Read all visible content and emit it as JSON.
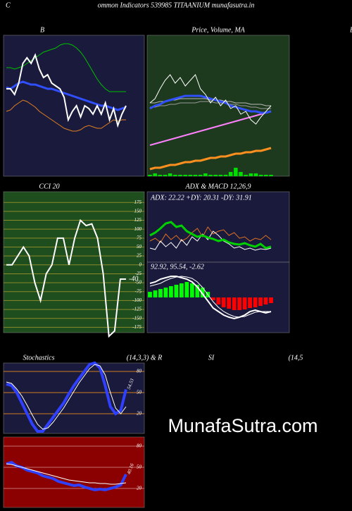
{
  "header": {
    "left": "C",
    "title": "ommon  Indicators 539985 TITAANIUM munafasutra.in",
    "right": "B"
  },
  "watermark": "MunafaSutra.com",
  "chart_data": [
    {
      "type": "line",
      "title": "B",
      "background": "#1a1a3c",
      "ylim": [
        0,
        100
      ],
      "series": [
        {
          "color": "#00c000",
          "width": 1,
          "values": [
            77,
            77,
            76,
            77,
            78,
            80,
            82,
            84,
            86,
            88,
            89,
            90,
            91,
            93,
            94,
            94,
            93,
            91,
            88,
            84,
            79,
            74,
            69,
            65,
            62,
            60,
            60,
            60,
            60,
            60
          ]
        },
        {
          "color": "#3050ff",
          "width": 3,
          "values": [
            63,
            62,
            64,
            66,
            67,
            66,
            65,
            65,
            64,
            63,
            62,
            62,
            61,
            60,
            59,
            58,
            57,
            56,
            55,
            54,
            53,
            52,
            51,
            50,
            50,
            49,
            48,
            47,
            48,
            49
          ]
        },
        {
          "color": "#e08020",
          "width": 1,
          "values": [
            46,
            47,
            50,
            52,
            54,
            53,
            51,
            49,
            46,
            44,
            42,
            40,
            38,
            36,
            34,
            33,
            32,
            32,
            33,
            35,
            36,
            35,
            34,
            34,
            36,
            38,
            40,
            39,
            40,
            40
          ]
        },
        {
          "color": "#ffffff",
          "width": 2,
          "values": [
            62,
            62,
            58,
            66,
            80,
            84,
            80,
            86,
            76,
            70,
            72,
            66,
            64,
            62,
            56,
            40,
            46,
            50,
            42,
            50,
            48,
            44,
            50,
            44,
            52,
            40,
            48,
            36,
            44,
            50
          ]
        }
      ]
    },
    {
      "type": "line",
      "title": "Price, Volume, MA",
      "background": "#1e3a1e",
      "ylim": [
        0,
        100
      ],
      "series": [
        {
          "color": "#00e000",
          "style": "bar",
          "values": [
            1,
            2,
            1,
            1,
            2,
            1,
            1,
            1,
            1,
            1,
            1,
            2,
            1,
            1,
            1,
            1,
            3,
            6,
            3,
            1,
            2,
            2,
            1,
            1,
            1
          ]
        },
        {
          "color": "#ff9020",
          "width": 3,
          "values": [
            5,
            6,
            6,
            7,
            8,
            8,
            9,
            10,
            10,
            11,
            11,
            12,
            13,
            13,
            14,
            14,
            15,
            16,
            16,
            17,
            17,
            18,
            18,
            19,
            20
          ]
        },
        {
          "color": "#ff80ff",
          "width": 2,
          "values": [
            22,
            23,
            24,
            25,
            26,
            27,
            28,
            29,
            30,
            31,
            32,
            33,
            34,
            35,
            36,
            37,
            38,
            39,
            40,
            41,
            42,
            43,
            44,
            45,
            46
          ]
        },
        {
          "color": "#bbbbbb",
          "width": 1,
          "values": [
            52,
            52,
            53,
            53,
            54,
            54,
            55,
            55,
            55,
            55,
            55,
            55,
            54,
            54,
            54,
            53,
            53,
            52,
            52,
            52,
            51,
            51,
            51,
            50,
            50
          ]
        },
        {
          "color": "#999999",
          "width": 1,
          "values": [
            49,
            49,
            50,
            50,
            51,
            51,
            52,
            52,
            52,
            52,
            53,
            53,
            53,
            52,
            52,
            52,
            51,
            51,
            50,
            50,
            49,
            49,
            48,
            48,
            48
          ]
        },
        {
          "color": "#3050ff",
          "width": 3,
          "values": [
            48,
            50,
            51,
            53,
            54,
            55,
            56,
            57,
            57,
            57,
            57,
            56,
            55,
            54,
            53,
            52,
            50,
            49,
            48,
            47,
            46,
            46,
            45,
            45,
            46
          ]
        },
        {
          "color": "#ffffff",
          "width": 1,
          "values": [
            52,
            55,
            62,
            68,
            72,
            66,
            70,
            64,
            68,
            72,
            62,
            58,
            52,
            56,
            50,
            54,
            48,
            50,
            44,
            46,
            40,
            37,
            42,
            46,
            50
          ]
        }
      ]
    },
    {
      "type": "line",
      "title": "CCI 20",
      "background": "#1e4d1e",
      "grid_color": "#8a8a2a",
      "ylim": [
        -190,
        205
      ],
      "yticks": [
        175,
        150,
        125,
        100,
        75,
        50,
        25,
        0,
        -25,
        -50,
        -75,
        -100,
        -125,
        -150,
        -175
      ],
      "last_label": true,
      "series": [
        {
          "color": "#ffffff",
          "width": 2,
          "values": [
            0,
            0,
            25,
            50,
            25,
            -50,
            -100,
            -25,
            0,
            75,
            75,
            0,
            75,
            125,
            110,
            115,
            75,
            -25,
            -200,
            -185,
            -40,
            -40
          ]
        }
      ]
    },
    {
      "type": "line",
      "title": "ADX  & MACD 12,26,9",
      "annotation": "ADX: 22.22  +DY: 20.31 -DY: 31.91",
      "background": "#1a1a3c",
      "ylim": [
        0,
        100
      ],
      "series": [
        {
          "color": "#e07020",
          "width": 1,
          "values": [
            30,
            34,
            28,
            40,
            32,
            38,
            30,
            34,
            42,
            48,
            36,
            50,
            40,
            44,
            46,
            38,
            42,
            34,
            36,
            30,
            34,
            32,
            38,
            32
          ]
        },
        {
          "color": "#ffffff",
          "width": 1,
          "values": [
            20,
            18,
            30,
            22,
            28,
            20,
            32,
            24,
            36,
            30,
            40,
            32,
            44,
            38,
            30,
            26,
            20,
            22,
            18,
            20,
            17,
            19,
            18,
            20
          ]
        },
        {
          "color": "#00d000",
          "width": 3,
          "values": [
            38,
            42,
            48,
            55,
            57,
            50,
            52,
            44,
            40,
            36,
            38,
            35,
            33,
            30,
            32,
            28,
            26,
            25,
            27,
            24,
            22,
            26,
            20,
            22
          ]
        }
      ]
    },
    {
      "type": "line",
      "annotation": "92.92,  95.54,  -2.62",
      "background": "#1a1a3c",
      "ylim": [
        -50,
        50
      ],
      "series": [
        {
          "color": "#00ff00",
          "negative_color": "#ff0000",
          "style": "bar",
          "values": [
            8,
            10,
            12,
            14,
            16,
            18,
            20,
            22,
            20,
            18,
            14,
            8,
            -4,
            -10,
            -14,
            -16,
            -18,
            -18,
            -17,
            -15,
            -14,
            -12,
            -10,
            -8
          ]
        },
        {
          "color": "#ffffff",
          "width": 1,
          "values": [
            16,
            18,
            20,
            24,
            27,
            29,
            30,
            29,
            27,
            22,
            14,
            4,
            -6,
            -14,
            -20,
            -24,
            -27,
            -28,
            -27,
            -24,
            -21,
            -20,
            -20,
            -20
          ]
        },
        {
          "color": "#ffffff",
          "width": 2,
          "values": [
            20,
            22,
            26,
            28,
            30,
            30,
            28,
            26,
            22,
            15,
            5,
            -5,
            -15,
            -20,
            -25,
            -28,
            -30,
            -28,
            -25,
            -20,
            -18,
            -20,
            -22,
            -20
          ]
        }
      ]
    },
    {
      "type": "line",
      "title": "Stochastics",
      "subtitle": "(14,3,3) & R",
      "background": "#1a1a3c",
      "grid_color": "#d08020",
      "ylim": [
        -8,
        92
      ],
      "yticks": [
        80,
        50,
        20
      ],
      "last_label": true,
      "series": [
        {
          "color": "#3040ff",
          "width": 4,
          "values": [
            62,
            60,
            50,
            35,
            20,
            5,
            -5,
            -5,
            5,
            15,
            25,
            35,
            48,
            60,
            70,
            80,
            90,
            92,
            85,
            60,
            30,
            20,
            25,
            54.53
          ]
        },
        {
          "color": "#ffffff",
          "width": 1,
          "values": [
            65,
            63,
            55,
            45,
            32,
            18,
            5,
            -2,
            0,
            8,
            18,
            28,
            40,
            52,
            64,
            74,
            84,
            90,
            88,
            75,
            50,
            28,
            20,
            30
          ]
        }
      ]
    },
    {
      "type": "line",
      "title": "SI",
      "subtitle": "(14,5",
      "background": "#8b0000",
      "grid_color": "#c07070",
      "ylim": [
        -7,
        93
      ],
      "yticks": [
        80,
        50,
        20
      ],
      "last_label": true,
      "series": [
        {
          "color": "#3040ff",
          "width": 4,
          "values": [
            55,
            57,
            52,
            50,
            46,
            44,
            42,
            38,
            36,
            34,
            30,
            28,
            26,
            24,
            25,
            22,
            20,
            18,
            19,
            18,
            20,
            22,
            25,
            40.16
          ]
        },
        {
          "color": "#ffffff",
          "width": 1,
          "values": [
            55,
            54,
            52,
            50,
            48,
            46,
            44,
            42,
            40,
            38,
            36,
            34,
            32,
            31,
            30,
            29,
            28,
            28,
            27,
            27,
            26,
            26,
            27,
            28
          ]
        }
      ]
    }
  ]
}
